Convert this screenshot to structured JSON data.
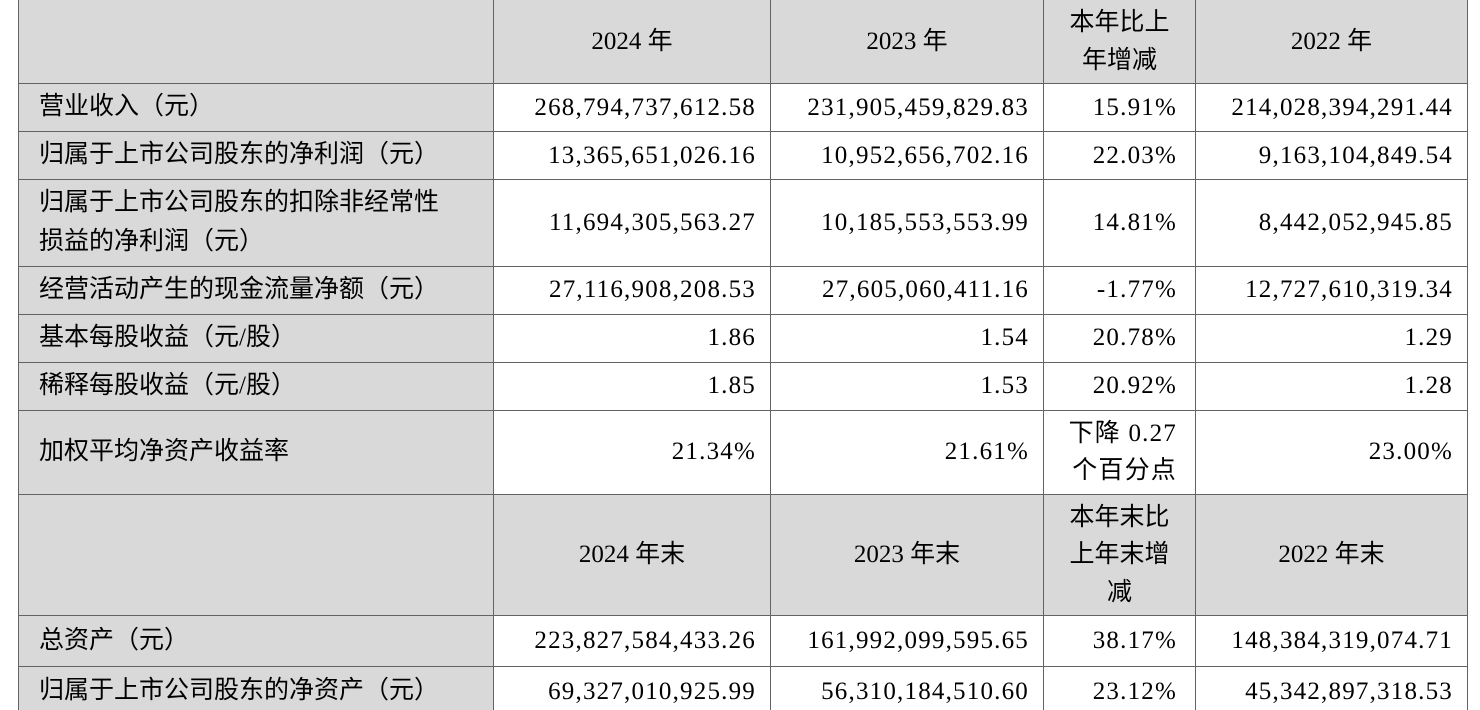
{
  "table": {
    "colors": {
      "header_bg": "#d9d9d9",
      "label_bg": "#d9d9d9",
      "data_bg": "#ffffff",
      "border": "#636363",
      "text": "#000000"
    },
    "rows": [
      {
        "type": "header",
        "cells": [
          "",
          "2024 年",
          "2023 年",
          "本年比上年增减",
          "2022 年"
        ]
      },
      {
        "type": "data",
        "cells": [
          "营业收入（元）",
          "268,794,737,612.58",
          "231,905,459,829.83",
          "15.91%",
          "214,028,394,291.44"
        ]
      },
      {
        "type": "data",
        "cells": [
          "归属于上市公司股东的净利润（元）",
          "13,365,651,026.16",
          "10,952,656,702.16",
          "22.03%",
          "9,163,104,849.54"
        ]
      },
      {
        "type": "data",
        "cells": [
          "归属于上市公司股东的扣除非经常性损益的净利润（元）",
          "11,694,305,563.27",
          "10,185,553,553.99",
          "14.81%",
          "8,442,052,945.85"
        ]
      },
      {
        "type": "data",
        "cells": [
          "经营活动产生的现金流量净额（元）",
          "27,116,908,208.53",
          "27,605,060,411.16",
          "-1.77%",
          "12,727,610,319.34"
        ]
      },
      {
        "type": "data",
        "cells": [
          "基本每股收益（元/股）",
          "1.86",
          "1.54",
          "20.78%",
          "1.29"
        ]
      },
      {
        "type": "data",
        "cells": [
          "稀释每股收益（元/股）",
          "1.85",
          "1.53",
          "20.92%",
          "1.28"
        ]
      },
      {
        "type": "data",
        "cells": [
          "加权平均净资产收益率",
          "21.34%",
          "21.61%",
          "下降 0.27 个百分点",
          "23.00%"
        ]
      },
      {
        "type": "header",
        "cells": [
          "",
          "2024 年末",
          "2023 年末",
          "本年末比上年末增减",
          "2022 年末"
        ]
      },
      {
        "type": "data",
        "cells": [
          "总资产（元）",
          "223,827,584,433.26",
          "161,992,099,595.65",
          "38.17%",
          "148,384,319,074.71"
        ]
      },
      {
        "type": "data",
        "cells": [
          "归属于上市公司股东的净资产（元）",
          "69,327,010,925.99",
          "56,310,184,510.60",
          "23.12%",
          "45,342,897,318.53"
        ]
      }
    ]
  }
}
